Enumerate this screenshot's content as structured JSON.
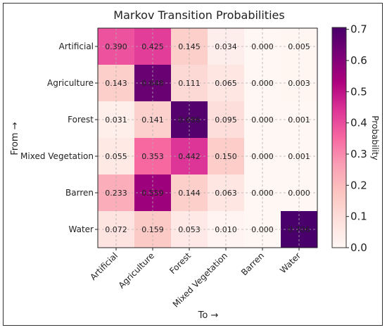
{
  "chart_data": {
    "type": "heatmap",
    "title": "Markov Transition Probabilities",
    "xlabel": "To →",
    "ylabel": "From →",
    "x_categories": [
      "Artificial",
      "Agriculture",
      "Forest",
      "Mixed Vegetation",
      "Barren",
      "Water"
    ],
    "y_categories": [
      "Artificial",
      "Agriculture",
      "Forest",
      "Mixed Vegetation",
      "Barren",
      "Water"
    ],
    "values": [
      [
        0.39,
        0.425,
        0.145,
        0.034,
        0.0,
        0.005
      ],
      [
        0.143,
        0.648,
        0.111,
        0.065,
        0.0,
        0.003
      ],
      [
        0.031,
        0.141,
        0.686,
        0.095,
        0.0,
        0.001
      ],
      [
        0.055,
        0.353,
        0.442,
        0.15,
        0.0,
        0.001
      ],
      [
        0.233,
        0.559,
        0.144,
        0.063,
        0.0,
        0.0
      ],
      [
        0.072,
        0.159,
        0.053,
        0.01,
        0.0,
        0.706
      ]
    ],
    "cell_labels": [
      [
        "0.390",
        "0.425",
        "0.145",
        "0.034",
        "0.000",
        "0.005"
      ],
      [
        "0.143",
        "0.648",
        "0.111",
        "0.065",
        "0.000",
        "0.003"
      ],
      [
        "0.031",
        "0.141",
        "0.686",
        "0.095",
        "0.000",
        "0.001"
      ],
      [
        "0.055",
        "0.353",
        "0.442",
        "0.150",
        "0.000",
        "0.001"
      ],
      [
        "0.233",
        "0.559",
        "0.144",
        "0.063",
        "0.000",
        "0.000"
      ],
      [
        "0.072",
        "0.159",
        "0.053",
        "0.010",
        "0.000",
        "0.706"
      ]
    ],
    "colorbar": {
      "label": "Probability",
      "ticks": [
        "0.0",
        "0.1",
        "0.2",
        "0.3",
        "0.4",
        "0.5",
        "0.6",
        "0.7"
      ],
      "range": [
        0,
        0.706
      ]
    },
    "colormap": "RdPu",
    "colormap_stops": [
      "#fff7f3",
      "#fde0dd",
      "#fcc5c0",
      "#fa9fb5",
      "#f768a1",
      "#dd3497",
      "#ae017e",
      "#7a0177",
      "#49006a"
    ],
    "grid": true
  }
}
